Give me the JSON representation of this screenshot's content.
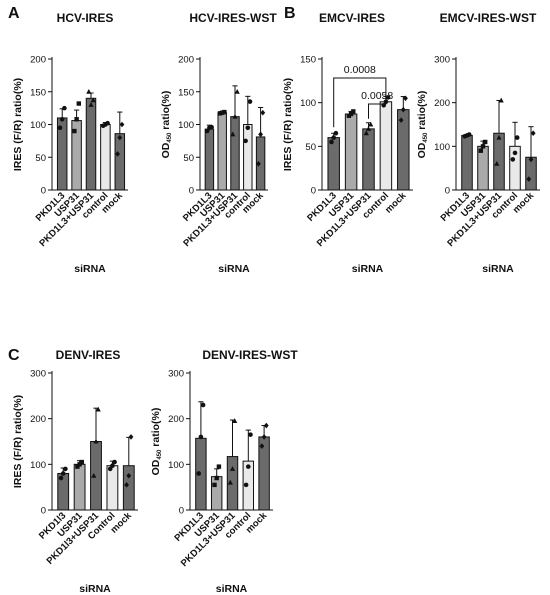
{
  "panel_labels": [
    "A",
    "B",
    "C"
  ],
  "colors": {
    "bar_dark": "#6b6b6b",
    "bar_mid": "#aaaaaa",
    "bar_light": "#d6d6d6",
    "bar_lightest": "#e9e9e9",
    "outline": "#111111"
  },
  "chart_data": [
    {
      "type": "bar",
      "title": "HCV-IRES",
      "ylabel": "IRES (F/R) ratio(%)",
      "xlabel": "siRNA",
      "categories": [
        "PKD1L3",
        "USP31",
        "PKD1L3+USP31",
        "control",
        "mock"
      ],
      "values": [
        110,
        106,
        140,
        100,
        86
      ],
      "errors": [
        14,
        16,
        8,
        3,
        33
      ],
      "points": [
        [
          95,
          108,
          125
        ],
        [
          90,
          108,
          132
        ],
        [
          150,
          130,
          137
        ],
        [
          98,
          100,
          102
        ],
        [
          55,
          80,
          100
        ]
      ],
      "point_shapes": [
        "circle",
        "square",
        "triangle",
        "circle",
        "diamond"
      ],
      "ylim": [
        0,
        200
      ],
      "yticks": [
        0,
        50,
        100,
        150,
        200
      ]
    },
    {
      "type": "bar",
      "title": "HCV-IRES-WST",
      "ylabel": "OD450 ratio(%)",
      "xlabel": "siRNA",
      "categories": [
        "PKD1L3",
        "USP31",
        "PKD1L3+USP31",
        "control",
        "mock"
      ],
      "values": [
        93,
        118,
        112,
        100,
        81
      ],
      "errors": [
        6,
        2,
        47,
        43,
        45
      ],
      "points": [
        [
          90,
          95,
          96
        ],
        [
          117,
          118,
          119
        ],
        [
          85,
          112,
          150
        ],
        [
          75,
          95,
          135
        ],
        [
          40,
          85,
          118
        ]
      ],
      "point_shapes": [
        "circle",
        "square",
        "triangle",
        "circle",
        "diamond"
      ],
      "ylim": [
        0,
        200
      ],
      "yticks": [
        0,
        50,
        100,
        150,
        200
      ]
    },
    {
      "type": "bar",
      "title": "EMCV-IRES",
      "ylabel": "IRES (F/R) ratio(%)",
      "xlabel": "siRNA",
      "categories": [
        "PKD1L3",
        "USP31",
        "PKD1L3+USP31",
        "control",
        "mock"
      ],
      "values": [
        60,
        87,
        70,
        101,
        92
      ],
      "errors": [
        5,
        3,
        7,
        6,
        15
      ],
      "points": [
        [
          55,
          60,
          65
        ],
        [
          85,
          87,
          90
        ],
        [
          65,
          70,
          75
        ],
        [
          97,
          101,
          106
        ],
        [
          80,
          92,
          105
        ]
      ],
      "point_shapes": [
        "circle",
        "square",
        "triangle",
        "circle",
        "diamond"
      ],
      "annotations": [
        {
          "from": "PKD1L3",
          "to": "control",
          "text": "0.0008"
        },
        {
          "from": "PKD1L3+USP31",
          "to": "control",
          "text": "0.0058"
        }
      ],
      "ylim": [
        0,
        150
      ],
      "yticks": [
        0,
        50,
        100,
        150
      ]
    },
    {
      "type": "bar",
      "title": "EMCV-IRES-WST",
      "ylabel": "OD450 ratio(%)",
      "xlabel": "siRNA",
      "categories": [
        "PKD1L3",
        "USP31",
        "PKD1L3+USP31",
        "control",
        "mock"
      ],
      "values": [
        125,
        100,
        130,
        100,
        75
      ],
      "errors": [
        2,
        12,
        75,
        55,
        70
      ],
      "points": [
        [
          123,
          125,
          127
        ],
        [
          90,
          100,
          110
        ],
        [
          60,
          120,
          205
        ],
        [
          70,
          85,
          120
        ],
        [
          25,
          70,
          130
        ]
      ],
      "point_shapes": [
        "circle",
        "square",
        "triangle",
        "circle",
        "diamond"
      ],
      "ylim": [
        0,
        300
      ],
      "yticks": [
        0,
        100,
        200,
        300
      ]
    },
    {
      "type": "bar",
      "title": "DENV-IRES",
      "ylabel": "IRES (F/R) ratio(%)",
      "xlabel": "siRNA",
      "categories": [
        "PKD1l3",
        "USP31",
        "PKD1l3+USP31",
        "Control",
        "mock"
      ],
      "values": [
        80,
        100,
        150,
        97,
        97
      ],
      "errors": [
        12,
        8,
        73,
        10,
        62
      ],
      "points": [
        [
          70,
          80,
          90
        ],
        [
          95,
          100,
          105
        ],
        [
          75,
          150,
          220
        ],
        [
          90,
          97,
          105
        ],
        [
          55,
          75,
          160
        ]
      ],
      "point_shapes": [
        "circle",
        "square",
        "triangle",
        "circle",
        "diamond"
      ],
      "ylim": [
        0,
        300
      ],
      "yticks": [
        0,
        100,
        200,
        300
      ]
    },
    {
      "type": "bar",
      "title": "DENV-IRES-WST",
      "ylabel": "OD450 ratio(%)",
      "xlabel": "siRNA",
      "categories": [
        "PKD1L3",
        "USP31",
        "PKD1L3+USP31",
        "control",
        "mock"
      ],
      "values": [
        157,
        73,
        117,
        107,
        160
      ],
      "errors": [
        80,
        17,
        80,
        68,
        25
      ],
      "points": [
        [
          80,
          160,
          230
        ],
        [
          55,
          70,
          95
        ],
        [
          60,
          90,
          195
        ],
        [
          55,
          95,
          165
        ],
        [
          140,
          160,
          185
        ]
      ],
      "point_shapes": [
        "circle",
        "square",
        "triangle",
        "circle",
        "diamond"
      ],
      "ylim": [
        0,
        300
      ],
      "yticks": [
        0,
        100,
        200,
        300
      ]
    }
  ]
}
